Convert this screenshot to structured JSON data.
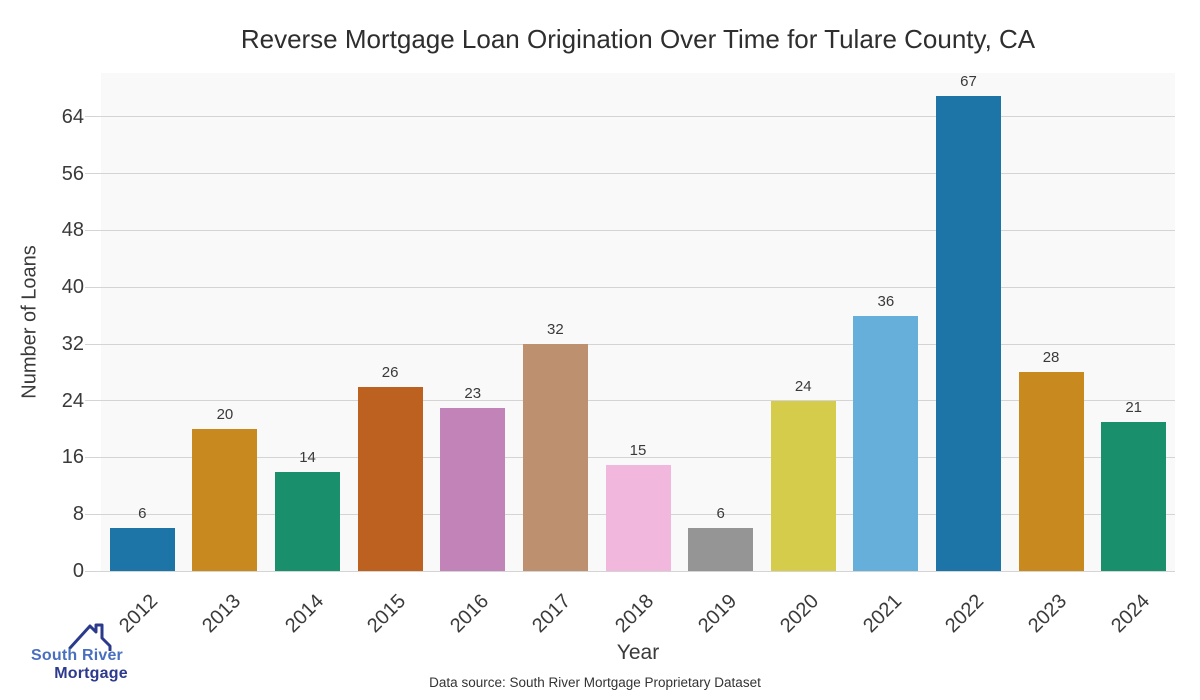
{
  "chart_data": {
    "type": "bar",
    "title": "Reverse Mortgage Loan Origination Over Time for Tulare County, CA",
    "xlabel": "Year",
    "ylabel": "Number of Loans",
    "categories": [
      "2012",
      "2013",
      "2014",
      "2015",
      "2016",
      "2017",
      "2018",
      "2019",
      "2020",
      "2021",
      "2022",
      "2023",
      "2024"
    ],
    "values": [
      6,
      20,
      14,
      26,
      23,
      32,
      15,
      6,
      24,
      36,
      67,
      28,
      21
    ],
    "bar_colors": [
      "#1d74a6",
      "#c8891f",
      "#1a8f6c",
      "#bc611f",
      "#c283b8",
      "#bd9170",
      "#f2b7dc",
      "#959595",
      "#d5cc4c",
      "#66afda",
      "#1d74a6",
      "#c8891f",
      "#1a8f6c"
    ],
    "value_labels_shown": true,
    "yticks": [
      0,
      8,
      16,
      24,
      32,
      40,
      48,
      56,
      64
    ],
    "ylim": [
      0,
      70.2
    ],
    "grid": "horizontal",
    "legend": "none",
    "plot_bg_color": "#f9f9f9",
    "gridline_color": "#d4d4d4",
    "text_color": "#3a3a3a"
  },
  "footer": {
    "data_source": "Data source: South River Mortgage Proprietary Dataset"
  },
  "logo": {
    "line1": "South River",
    "line2": "Mortgage",
    "line1_color": "#4a6fc0",
    "line2_color": "#2d3a8d",
    "roof_color": "#2c3a8c"
  }
}
